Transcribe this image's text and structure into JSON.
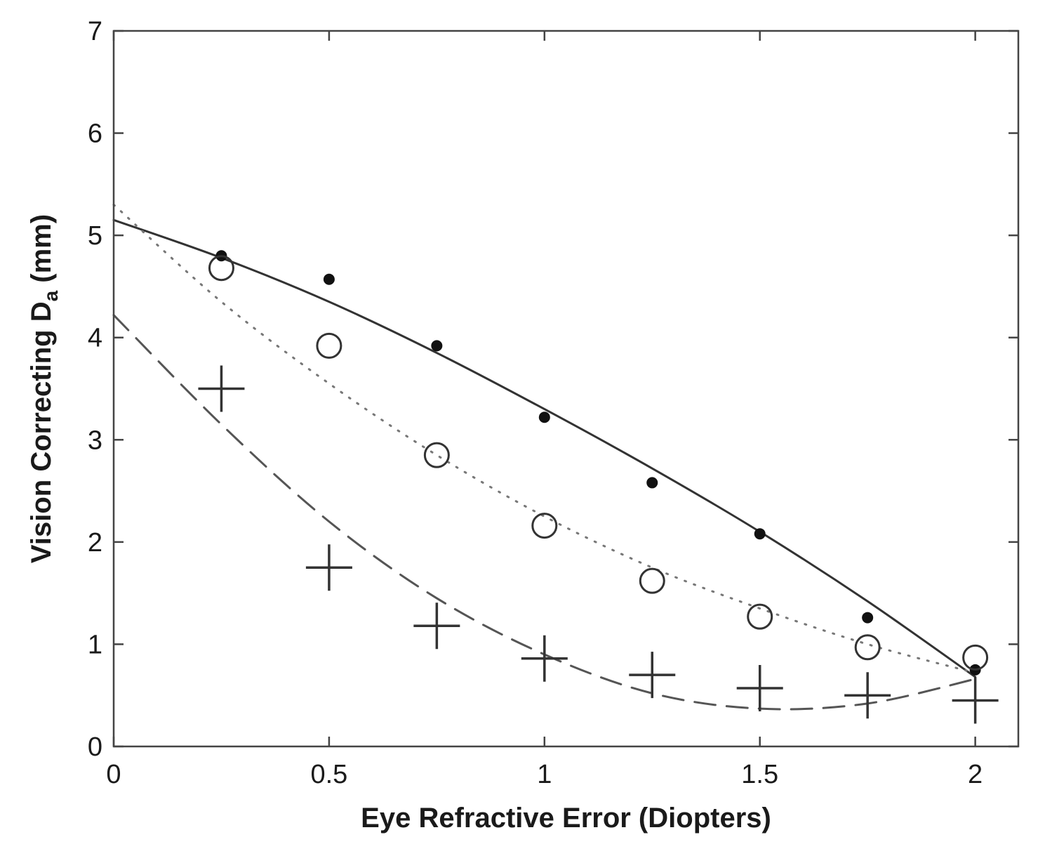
{
  "chart_data": {
    "type": "scatter",
    "title": "",
    "xlabel": "Eye Refractive Error (Diopters)",
    "ylabel_main": "Vision Correcting D",
    "ylabel_sub": "a",
    "ylabel_suffix": " (mm)",
    "xlim": [
      0,
      2.1
    ],
    "ylim": [
      0,
      7
    ],
    "x_ticks": [
      0,
      0.5,
      1,
      1.5,
      2
    ],
    "x_tick_labels": [
      "0",
      "0.5",
      "1",
      "1.5",
      "2"
    ],
    "y_ticks": [
      0,
      1,
      2,
      3,
      4,
      5,
      6,
      7
    ],
    "y_tick_labels": [
      "0",
      "1",
      "2",
      "3",
      "4",
      "5",
      "6",
      "7"
    ],
    "grid": false,
    "series": [
      {
        "marker": "filled-dot",
        "color": "#111111",
        "x": [
          0.25,
          0.5,
          0.75,
          1.0,
          1.25,
          1.5,
          1.75,
          2.0
        ],
        "y": [
          4.8,
          4.57,
          3.92,
          3.22,
          2.58,
          2.08,
          1.26,
          0.75
        ]
      },
      {
        "marker": "open-circle",
        "color": "#333333",
        "x": [
          0.25,
          0.5,
          0.75,
          1.0,
          1.25,
          1.5,
          1.75,
          2.0
        ],
        "y": [
          4.68,
          3.92,
          2.85,
          2.16,
          1.62,
          1.27,
          0.97,
          0.87
        ]
      },
      {
        "marker": "plus",
        "color": "#333333",
        "x": [
          0.25,
          0.5,
          0.75,
          1.0,
          1.25,
          1.5,
          1.75,
          2.0
        ],
        "y": [
          3.5,
          1.75,
          1.18,
          0.86,
          0.7,
          0.57,
          0.5,
          0.45
        ]
      }
    ],
    "fit_lines": [
      {
        "style": "solid",
        "color": "#333333",
        "x": [
          0,
          0.25,
          0.5,
          0.75,
          1.0,
          1.25,
          1.5,
          1.75,
          2.0
        ],
        "y": [
          5.15,
          4.78,
          4.35,
          3.85,
          3.3,
          2.72,
          2.1,
          1.42,
          0.68
        ]
      },
      {
        "style": "dotted",
        "color": "#777777",
        "x": [
          0,
          0.25,
          0.5,
          0.75,
          1.0,
          1.25,
          1.5,
          1.75,
          2.0
        ],
        "y": [
          5.3,
          4.35,
          3.55,
          2.85,
          2.25,
          1.75,
          1.35,
          1.0,
          0.72
        ]
      },
      {
        "style": "dashed",
        "color": "#555555",
        "x": [
          0,
          0.25,
          0.5,
          0.75,
          1.0,
          1.25,
          1.5,
          1.75,
          2.0
        ],
        "y": [
          4.22,
          3.15,
          2.2,
          1.45,
          0.9,
          0.52,
          0.37,
          0.42,
          0.66
        ]
      }
    ]
  }
}
